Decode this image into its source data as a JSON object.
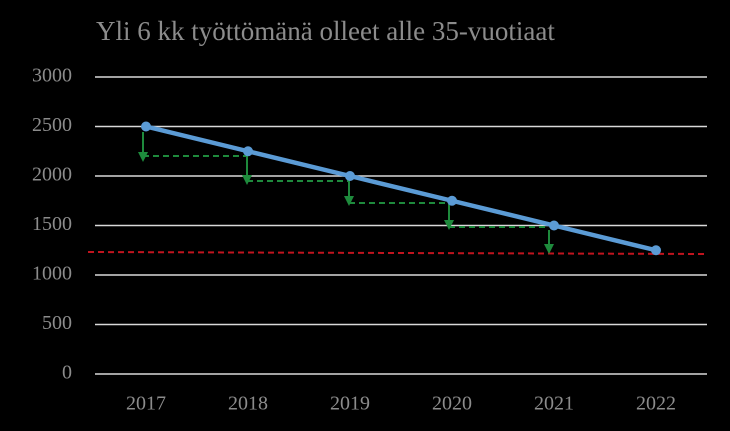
{
  "chart_data": {
    "type": "line",
    "title": "Yli 6 kk työttömänä olleet alle 35-vuotiaat",
    "categories": [
      "2017",
      "2018",
      "2019",
      "2020",
      "2021",
      "2022"
    ],
    "series": [
      {
        "name": "alle 35-vuotiaat",
        "color": "#5b9bd5",
        "values": [
          2500,
          2250,
          2000,
          1750,
          1500,
          1250
        ]
      }
    ],
    "ylim": [
      0,
      3000
    ],
    "yticks": [
      0,
      500,
      1000,
      1500,
      2000,
      2500,
      3000
    ],
    "grid": true
  }
}
